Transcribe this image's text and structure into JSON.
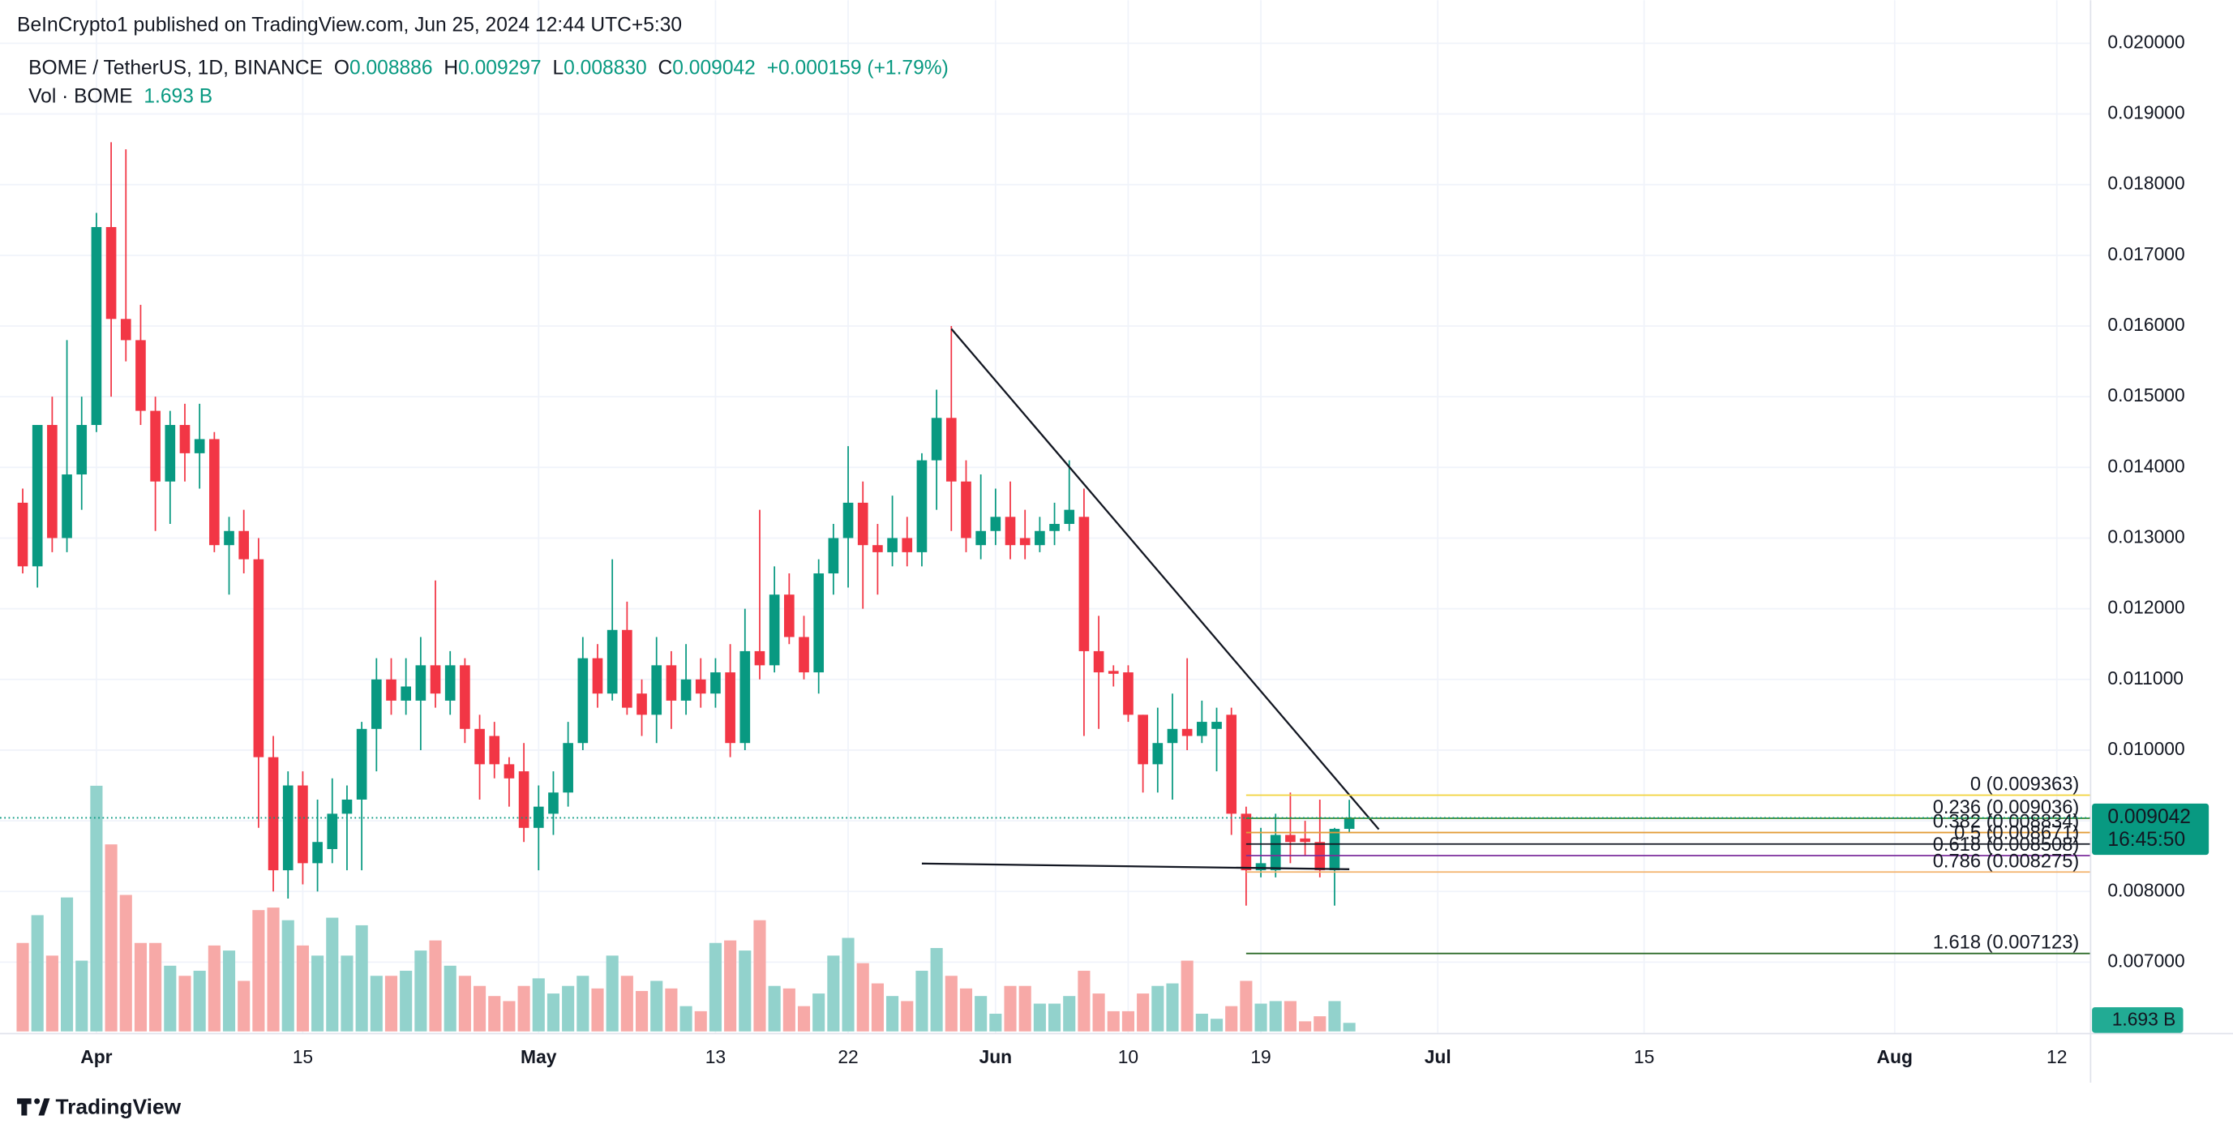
{
  "header": {
    "published": "BeInCrypto1 published on TradingView.com, Jun 25, 2024 12:44 UTC+5:30"
  },
  "chart_data": {
    "type": "candlestick",
    "symbol": "BOME / TetherUS, 1D, BINANCE",
    "ohlc_labels": [
      "O",
      "H",
      "L",
      "C"
    ],
    "ohlc_value_labels": [
      "0.008886",
      "0.009297",
      "0.008830",
      "0.009042"
    ],
    "change": "+0.000159 (+1.79%)",
    "volume_title": "Vol · BOME",
    "last_volume_label": "1.693 B",
    "countdown": "16:45:50",
    "up_color": "#089981",
    "down_color": "#f23645",
    "volume_up_color": "#92d2cc",
    "volume_down_color": "#f7a9a7",
    "grid": true,
    "x": [
      "2024-03-27",
      "2024-03-28",
      "2024-03-29",
      "2024-03-30",
      "2024-03-31",
      "2024-04-01",
      "2024-04-02",
      "2024-04-03",
      "2024-04-04",
      "2024-04-05",
      "2024-04-06",
      "2024-04-07",
      "2024-04-08",
      "2024-04-09",
      "2024-04-10",
      "2024-04-11",
      "2024-04-12",
      "2024-04-13",
      "2024-04-14",
      "2024-04-15",
      "2024-04-16",
      "2024-04-17",
      "2024-04-18",
      "2024-04-19",
      "2024-04-20",
      "2024-04-21",
      "2024-04-22",
      "2024-04-23",
      "2024-04-24",
      "2024-04-25",
      "2024-04-26",
      "2024-04-27",
      "2024-04-28",
      "2024-04-29",
      "2024-04-30",
      "2024-05-01",
      "2024-05-02",
      "2024-05-03",
      "2024-05-04",
      "2024-05-05",
      "2024-05-06",
      "2024-05-07",
      "2024-05-08",
      "2024-05-09",
      "2024-05-10",
      "2024-05-11",
      "2024-05-12",
      "2024-05-13",
      "2024-05-14",
      "2024-05-15",
      "2024-05-16",
      "2024-05-17",
      "2024-05-18",
      "2024-05-19",
      "2024-05-20",
      "2024-05-21",
      "2024-05-22",
      "2024-05-23",
      "2024-05-24",
      "2024-05-25",
      "2024-05-26",
      "2024-05-27",
      "2024-05-28",
      "2024-05-29",
      "2024-05-30",
      "2024-05-31",
      "2024-06-01",
      "2024-06-02",
      "2024-06-03",
      "2024-06-04",
      "2024-06-05",
      "2024-06-06",
      "2024-06-07",
      "2024-06-08",
      "2024-06-09",
      "2024-06-10",
      "2024-06-11",
      "2024-06-12",
      "2024-06-13",
      "2024-06-14",
      "2024-06-15",
      "2024-06-16",
      "2024-06-17",
      "2024-06-18",
      "2024-06-19",
      "2024-06-20",
      "2024-06-21",
      "2024-06-22",
      "2024-06-23",
      "2024-06-24",
      "2024-06-25"
    ],
    "open": [
      0.0135,
      0.0126,
      0.0146,
      0.013,
      0.0139,
      0.0146,
      0.0174,
      0.0161,
      0.0158,
      0.0148,
      0.0138,
      0.0146,
      0.0142,
      0.0144,
      0.0129,
      0.0131,
      0.0127,
      0.0099,
      0.0083,
      0.0095,
      0.0084,
      0.0086,
      0.0091,
      0.0093,
      0.0103,
      0.011,
      0.0107,
      0.0107,
      0.0112,
      0.0107,
      0.0112,
      0.0103,
      0.0102,
      0.0098,
      0.0097,
      0.0089,
      0.0091,
      0.0094,
      0.0101,
      0.0113,
      0.0108,
      0.0117,
      0.0108,
      0.0105,
      0.0112,
      0.0107,
      0.011,
      0.0108,
      0.0111,
      0.0101,
      0.0114,
      0.0112,
      0.0122,
      0.0116,
      0.0111,
      0.0125,
      0.013,
      0.0135,
      0.0129,
      0.0128,
      0.013,
      0.0128,
      0.0141,
      0.0147,
      0.0138,
      0.0129,
      0.0131,
      0.0133,
      0.013,
      0.0129,
      0.0131,
      0.0132,
      0.0133,
      0.0114,
      0.01112,
      0.0111,
      0.0105,
      0.0098,
      0.0101,
      0.0103,
      0.0102,
      0.0103,
      0.0105,
      0.0091,
      0.0083,
      0.0083,
      0.0088,
      0.00875,
      0.0087,
      0.0083,
      0.008886
    ],
    "high": [
      0.0137,
      0.0146,
      0.015,
      0.0158,
      0.015,
      0.0176,
      0.0186,
      0.0185,
      0.0163,
      0.015,
      0.0148,
      0.0149,
      0.0149,
      0.0145,
      0.0133,
      0.0134,
      0.013,
      0.0102,
      0.0097,
      0.0097,
      0.0093,
      0.0096,
      0.0095,
      0.0104,
      0.0113,
      0.0113,
      0.0113,
      0.0116,
      0.0124,
      0.0114,
      0.0113,
      0.0105,
      0.0104,
      0.0099,
      0.0101,
      0.0095,
      0.0097,
      0.0104,
      0.0116,
      0.0115,
      0.0127,
      0.0121,
      0.011,
      0.0116,
      0.0114,
      0.0115,
      0.0113,
      0.0113,
      0.0115,
      0.012,
      0.0134,
      0.0126,
      0.0125,
      0.0119,
      0.0127,
      0.0132,
      0.0143,
      0.0138,
      0.0132,
      0.0136,
      0.0133,
      0.0142,
      0.0151,
      0.016,
      0.0141,
      0.0139,
      0.0137,
      0.0138,
      0.0134,
      0.0133,
      0.0135,
      0.0141,
      0.0137,
      0.0119,
      0.0112,
      0.0112,
      0.0105,
      0.0106,
      0.0108,
      0.0113,
      0.0107,
      0.0106,
      0.0106,
      0.0092,
      0.0089,
      0.0091,
      0.0094,
      0.009,
      0.0093,
      0.0089,
      0.009297
    ],
    "low": [
      0.0125,
      0.0123,
      0.0128,
      0.0128,
      0.0134,
      0.0145,
      0.015,
      0.0155,
      0.0146,
      0.0131,
      0.0132,
      0.0138,
      0.0137,
      0.0128,
      0.0122,
      0.0125,
      0.0089,
      0.008,
      0.0079,
      0.0081,
      0.008,
      0.0084,
      0.0083,
      0.0083,
      0.0097,
      0.0105,
      0.0105,
      0.01,
      0.0106,
      0.0105,
      0.0101,
      0.0093,
      0.0096,
      0.0092,
      0.0087,
      0.0083,
      0.0088,
      0.0092,
      0.01,
      0.0106,
      0.0107,
      0.0105,
      0.0102,
      0.0101,
      0.0103,
      0.0105,
      0.0106,
      0.0106,
      0.0099,
      0.01,
      0.011,
      0.0111,
      0.0115,
      0.011,
      0.0108,
      0.0122,
      0.0123,
      0.012,
      0.0122,
      0.0126,
      0.0126,
      0.0126,
      0.0134,
      0.0131,
      0.0128,
      0.0127,
      0.0129,
      0.0127,
      0.0127,
      0.0128,
      0.0129,
      0.0131,
      0.0102,
      0.0103,
      0.0109,
      0.0104,
      0.0094,
      0.0094,
      0.0093,
      0.01,
      0.0101,
      0.0097,
      0.0088,
      0.0078,
      0.0082,
      0.0082,
      0.0084,
      0.0085,
      0.0082,
      0.0078,
      0.00883
    ],
    "close": [
      0.0126,
      0.0146,
      0.013,
      0.0139,
      0.0146,
      0.0174,
      0.0161,
      0.0158,
      0.0148,
      0.0138,
      0.0146,
      0.0142,
      0.0144,
      0.0129,
      0.0131,
      0.0127,
      0.0099,
      0.0083,
      0.0095,
      0.0084,
      0.0087,
      0.0091,
      0.0093,
      0.0103,
      0.011,
      0.0107,
      0.0109,
      0.0112,
      0.0108,
      0.0112,
      0.0103,
      0.0098,
      0.0098,
      0.0096,
      0.0089,
      0.0092,
      0.0094,
      0.0101,
      0.0113,
      0.0108,
      0.0117,
      0.0106,
      0.0105,
      0.0112,
      0.0107,
      0.011,
      0.0108,
      0.0111,
      0.0101,
      0.0114,
      0.0112,
      0.0122,
      0.0116,
      0.0111,
      0.0125,
      0.013,
      0.0135,
      0.0129,
      0.0128,
      0.013,
      0.0128,
      0.0141,
      0.0147,
      0.0138,
      0.013,
      0.0131,
      0.0133,
      0.0129,
      0.0129,
      0.0131,
      0.0132,
      0.0134,
      0.0114,
      0.0111,
      0.01108,
      0.0105,
      0.0098,
      0.0101,
      0.0103,
      0.0102,
      0.0104,
      0.0104,
      0.0091,
      0.0083,
      0.0084,
      0.0088,
      0.0087,
      0.0087,
      0.0083,
      0.008886,
      0.009042
    ],
    "volume": [
      17.5,
      23,
      15,
      26.5,
      14,
      48.6,
      37,
      27,
      17.5,
      17.5,
      13,
      11,
      12,
      17,
      16,
      10,
      24,
      24.5,
      22,
      17,
      15,
      22.5,
      15,
      21,
      11,
      11,
      12,
      16,
      18,
      13,
      11,
      9,
      7,
      6,
      9,
      10.5,
      7.5,
      9,
      11,
      8.5,
      15,
      11,
      8,
      10,
      8.5,
      5,
      4,
      17.5,
      18,
      16,
      22,
      9,
      8.5,
      5,
      7.5,
      15,
      18.5,
      13.5,
      9.5,
      7,
      6,
      12,
      16.5,
      11,
      8.5,
      7,
      3.5,
      9,
      9,
      5.5,
      5.5,
      7,
      12,
      7.5,
      4,
      4,
      7.5,
      9,
      9.5,
      14,
      3.5,
      2.5,
      5,
      10,
      5.5,
      6,
      6,
      2,
      3,
      6,
      1.693
    ],
    "volume_ylim": [
      0,
      204
    ],
    "xlim": [
      "2024-03-26",
      "2024-08-14"
    ],
    "xticks": [
      {
        "value": "2024-04-01",
        "label": "Apr"
      },
      {
        "value": "2024-04-15",
        "label": "15"
      },
      {
        "value": "2024-05-01",
        "label": "May"
      },
      {
        "value": "2024-05-13",
        "label": "13"
      },
      {
        "value": "2024-05-22",
        "label": "22"
      },
      {
        "value": "2024-06-01",
        "label": "Jun"
      },
      {
        "value": "2024-06-10",
        "label": "10"
      },
      {
        "value": "2024-06-19",
        "label": "19"
      },
      {
        "value": "2024-07-01",
        "label": "Jul"
      },
      {
        "value": "2024-07-15",
        "label": "15"
      },
      {
        "value": "2024-08-01",
        "label": "Aug"
      },
      {
        "value": "2024-08-12",
        "label": "12"
      }
    ],
    "ylim": [
      0.00602,
      0.02061
    ],
    "yticks": [
      {
        "value": 0.007,
        "label": "0.007000"
      },
      {
        "value": 0.008,
        "label": "0.008000"
      },
      {
        "value": 0.009,
        "label": "0.009000"
      },
      {
        "value": 0.01,
        "label": "0.010000"
      },
      {
        "value": 0.011,
        "label": "0.011000"
      },
      {
        "value": 0.012,
        "label": "0.012000"
      },
      {
        "value": 0.013,
        "label": "0.013000"
      },
      {
        "value": 0.014,
        "label": "0.014000"
      },
      {
        "value": 0.015,
        "label": "0.015000"
      },
      {
        "value": 0.016,
        "label": "0.016000"
      },
      {
        "value": 0.017,
        "label": "0.017000"
      },
      {
        "value": 0.018,
        "label": "0.018000"
      },
      {
        "value": 0.019,
        "label": "0.019000"
      },
      {
        "value": 0.02,
        "label": "0.020000"
      }
    ],
    "fib_start": "2024-06-18",
    "fib_levels": [
      {
        "label": "0 (0.009363)",
        "value": 0.009363,
        "color": "#f2d33a"
      },
      {
        "label": "0.236 (0.009036)",
        "value": 0.009036,
        "color": "#3c8a2e"
      },
      {
        "label": "0.382 (0.008834)",
        "value": 0.008834,
        "color": "#e39d3a"
      },
      {
        "label": "0.5 (0.008671)",
        "value": 0.008671,
        "color": "#131722"
      },
      {
        "label": "0.618 (0.008508)",
        "value": 0.008508,
        "color": "#7b2d9c"
      },
      {
        "label": "0.786 (0.008275)",
        "value": 0.008275,
        "color": "#f3b26b"
      },
      {
        "label": "1.618 (0.007123)",
        "value": 0.007123,
        "color": "#2e6b2a"
      }
    ],
    "trendlines": [
      {
        "x": [
          "2024-05-29",
          "2024-06-27"
        ],
        "y": [
          0.01596,
          0.008879
        ]
      },
      {
        "x": [
          "2024-05-27",
          "2024-06-25"
        ],
        "y": [
          0.008395,
          0.008315
        ]
      }
    ]
  },
  "footer": {
    "brand": "TradingView"
  }
}
